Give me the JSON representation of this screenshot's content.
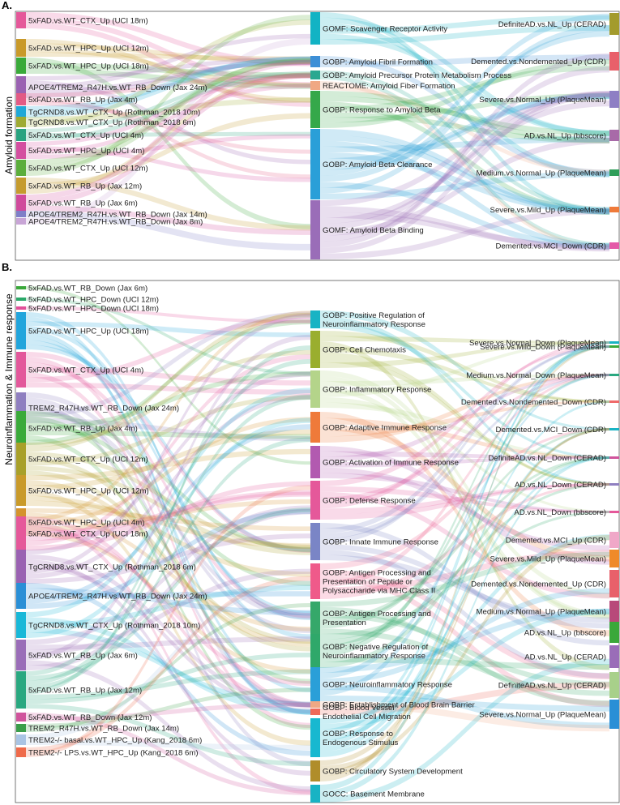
{
  "panels": [
    {
      "letter": "A.",
      "title": "Amyloid formation",
      "left_nodes": [
        {
          "label": "5xFAD.vs.WT_CTX_Up (UCI 18m)",
          "color": "#e5589a"
        },
        {
          "label": "5xFAD.vs.WT_HPC_Up (UCI 12m)",
          "color": "#c99a2a"
        },
        {
          "label": "5xFAD.vs.WT_HPC_Up (UCI 18m)",
          "color": "#3aaa3a"
        },
        {
          "label": "APOE4/TREM2_R47H.vs.WT_RB_Down (Jax 24m)",
          "color": "#9a62b2"
        },
        {
          "label": "5xFAD.vs.WT_RB_Up (Jax 4m)",
          "color": "#e35b85"
        },
        {
          "label": "TgCRND8.vs.WT_CTX_Up (Rothman_2018 10m)",
          "color": "#1fa8d8"
        },
        {
          "label": "TgCRND8.vs.WT_CTX_Up (Rothman_2018 6m)",
          "color": "#9fab33"
        },
        {
          "label": "5xFAD.vs.WT_CTX_Up (UCI 4m)",
          "color": "#29a380"
        },
        {
          "label": "5xFAD.vs.WT_HPC_Up (UCI 4m)",
          "color": "#d44fa0"
        },
        {
          "label": "5xFAD.vs.WT_CTX_Up (UCI 12m)",
          "color": "#5cae3c"
        },
        {
          "label": "5xFAD.vs.WT_RB_Up (Jax 12m)",
          "color": "#c59b2e"
        },
        {
          "label": "5xFAD.vs.WT_RB_Up (Jax 6m)",
          "color": "#d04a9c"
        },
        {
          "label": "APOE4/TREM2_R47H.vs.WT_RB_Down (Jax 14m)",
          "color": "#7f7fc8"
        },
        {
          "label": "APOE4/TREM2_R47H.vs.WT_RB_Down (Jax 8m)",
          "color": "#c8a5d6"
        }
      ],
      "middle_nodes": [
        {
          "label": [
            "GOMF: Scavenger Receptor Activity"
          ],
          "color": "#12b3c4"
        },
        {
          "label": [
            "GOBP: Amyloid Fibril Formation"
          ],
          "color": "#3d8fd6"
        },
        {
          "label": [
            "GOBP: Amyloid Precursor Protein Metabolism Process"
          ],
          "color": "#2aa890"
        },
        {
          "label": [
            "REACTOME: Amyloid Fiber Formation"
          ],
          "color": "#f0a884"
        },
        {
          "label": [
            "GOBP: Response to Amyloid Beta"
          ],
          "color": "#35a84a"
        },
        {
          "label": [
            "GOBP: Amyloid Beta Clearance"
          ],
          "color": "#2a9fd8"
        },
        {
          "label": [
            "GOMF: Amyloid Beta Binding"
          ],
          "color": "#9a6db8"
        }
      ],
      "right_nodes": [
        {
          "label": "DefiniteAD.vs.NL_Up (CERAD)",
          "color": "#a39b2d"
        },
        {
          "label": "Demented.vs.Nondemented_Up (CDR)",
          "color": "#e8606a"
        },
        {
          "label": "Severe.vs.Normal_Up (PlaqueMean)",
          "color": "#8e7fc4"
        },
        {
          "label": "AD.vs.NL_Up (bbscore)",
          "color": "#a86aa8"
        },
        {
          "label": "Medium.vs.Normal_Up (PlaqueMean)",
          "color": "#2f9e5a"
        },
        {
          "label": "Severe.vs.Mild_Up (PlaqueMean)",
          "color": "#ef7a3a"
        },
        {
          "label": "Demented.vs.MCI_Down (CDR)",
          "color": "#e45aa8"
        }
      ]
    },
    {
      "letter": "B.",
      "title": "Neuroinflammation & Immune response",
      "left_nodes": [
        {
          "label": "5xFAD.vs.WT_RB_Down (Jax 6m)",
          "color": "#3aa83a"
        },
        {
          "label": "5xFAD.vs.WT_HPC_Down (UCI 12m)",
          "color": "#2aa868"
        },
        {
          "label": "5xFAD.vs.WT_HPC_Down (UCI 18m)",
          "color": "#e3509a"
        },
        {
          "label": "5xFAD.vs.WT_HPC_Up (UCI 18m)",
          "color": "#22a5dc"
        },
        {
          "label": "5xFAD.vs.WT_CTX_Up (UCI 4m)",
          "color": "#e3589b"
        },
        {
          "label": "TREM2_R47H.vs.WT_RB_Down (Jax 24m)",
          "color": "#8f7fc0"
        },
        {
          "label": "5xFAD.vs.WT_RB_Up (Jax 4m)",
          "color": "#3aaa3a"
        },
        {
          "label": "5xFAD.vs.WT_CTX_Up (UCI 12m)",
          "color": "#a8a02a"
        },
        {
          "label": "5xFAD.vs.WT_HPC_Up (UCI 12m)",
          "color": "#c99a2a"
        },
        {
          "label": "5xFAD.vs.WT_HPC_Up (UCI 4m)",
          "color": "#d4932c"
        },
        {
          "label": "5xFAD.vs.WT_CTX_Up (UCI 18m)",
          "color": "#e5589a"
        },
        {
          "label": "TgCRND8.vs.WT_CTX_Up (Rothman_2018 6m)",
          "color": "#9a62b2"
        },
        {
          "label": "APOE4/TREM2_R47H.vs.WT_RB_Down (Jax 24m)",
          "color": "#2a8fd6"
        },
        {
          "label": "TgCRND8.vs.WT_CTX_Up (Rothman_2018 10m)",
          "color": "#18b8d8"
        },
        {
          "label": "5xFAD.vs.WT_RB_Up (Jax 6m)",
          "color": "#9a6db8"
        },
        {
          "label": "5xFAD.vs.WT_RB_Up (Jax 12m)",
          "color": "#2aa880"
        },
        {
          "label": "5xFAD.vs.WT_RB_Down (Jax 12m)",
          "color": "#d0549c"
        },
        {
          "label": "TREM2_R47H.vs.WT_RB_Down (Jax 14m)",
          "color": "#3a9e4a"
        },
        {
          "label": "TREM2-/- basal.vs.WT_HPC_Up (Kang_2018 6m)",
          "color": "#a9c4e4"
        },
        {
          "label": "TREM2-/- LPS.vs.WT_HPC_Up (Kang_2018 6m)",
          "color": "#ef6a4a"
        }
      ],
      "middle_nodes": [
        {
          "label": [
            "GOBP: Positive Regulation of",
            "Neuroinflammatory Response"
          ],
          "color": "#18b3c4"
        },
        {
          "label": [
            "GOBP: Cell Chemotaxis"
          ],
          "color": "#9aae2e"
        },
        {
          "label": [
            "GOBP: Inflammatory Response"
          ],
          "color": "#b4d48a"
        },
        {
          "label": [
            "GOBP: Adaptive Immune Response"
          ],
          "color": "#ef7a3a"
        },
        {
          "label": [
            "GOBP: Activation of Immune Response"
          ],
          "color": "#b25ab0"
        },
        {
          "label": [
            "GOBP: Defense Response"
          ],
          "color": "#e5589a"
        },
        {
          "label": [
            "GOBP: Innate Immune Response"
          ],
          "color": "#7a85c6"
        },
        {
          "label": [
            "GOBP: Antigen Processing and",
            "Presentation of Peptide or",
            "Polysaccharide via MHC Class II"
          ],
          "color": "#ef5a8a"
        },
        {
          "label": [
            "GOBP: Antigen Processing and",
            "Presentation"
          ],
          "color": "#35a86a"
        },
        {
          "label": [
            "GOBP: Negative Regulation of",
            "Neuroinflammatory Response"
          ],
          "color": "#2fa86a"
        },
        {
          "label": [
            "GOBP: Neuroinflammatory Response"
          ],
          "color": "#2a9fd8"
        },
        {
          "label": [
            "GOBP: Establishment of Blood Brain Barrier"
          ],
          "color": "#f0a884"
        },
        {
          "label": [
            "GOBP: Blood Vessel",
            "Endothelial Cell Migration"
          ],
          "color": "#ef6a5a"
        },
        {
          "label": [
            "GOBP: Response to",
            "Endogenous Stimulus"
          ],
          "color": "#18b8d0"
        },
        {
          "label": [
            "GOBP: Circulatory System Development"
          ],
          "color": "#b08d2a"
        },
        {
          "label": [
            "GOCC: Basement Membrane"
          ],
          "color": "#18b3c4"
        }
      ],
      "right_nodes": [
        {
          "label": "Severe.vs.Normal_Down (PlaqueMean)",
          "color": "#18b3c4"
        },
        {
          "label": "Severe.vs.Mild_Down (PlaqueMean)",
          "color": "#3aaa3a"
        },
        {
          "label": "Medium.vs.Normal_Down (PlaqueMean)",
          "color": "#2aa880"
        },
        {
          "label": "Demented.vs.Nondemented_Down (CDR)",
          "color": "#ef6a6a"
        },
        {
          "label": "Demented.vs.MCI_Down (CDR)",
          "color": "#18b3c4"
        },
        {
          "label": "DefiniteAD.vs.NL_Down (CERAD)",
          "color": "#d0549c"
        },
        {
          "label": "AD.vs.NL_Down (CERAD)",
          "color": "#8f7fc0"
        },
        {
          "label": "AD.vs.NL_Down (bbscore)",
          "color": "#e5589a"
        },
        {
          "label": "Demented.vs.MCI_Up (CDR)",
          "color": "#f0a8c8"
        },
        {
          "label": "Severe.vs.Mild_Up (PlaqueMean)",
          "color": "#ef8a2a"
        },
        {
          "label": "Demented.vs.Nondemented_Up (CDR)",
          "color": "#e8606a"
        },
        {
          "label": "Medium.vs.Normal_Up (PlaqueMean)",
          "color": "#b84a7a"
        },
        {
          "label": "AD.vs.NL_Up (bbscore)",
          "color": "#3aa83a"
        },
        {
          "label": "AD.vs.NL_Up (CERAD)",
          "color": "#9a6db8"
        },
        {
          "label": "DefiniteAD.vs.NL_Up (CERAD)",
          "color": "#a8d08a"
        },
        {
          "label": "Severe.vs.Normal_Up (PlaqueMean)",
          "color": "#2a8fd6"
        }
      ]
    }
  ]
}
